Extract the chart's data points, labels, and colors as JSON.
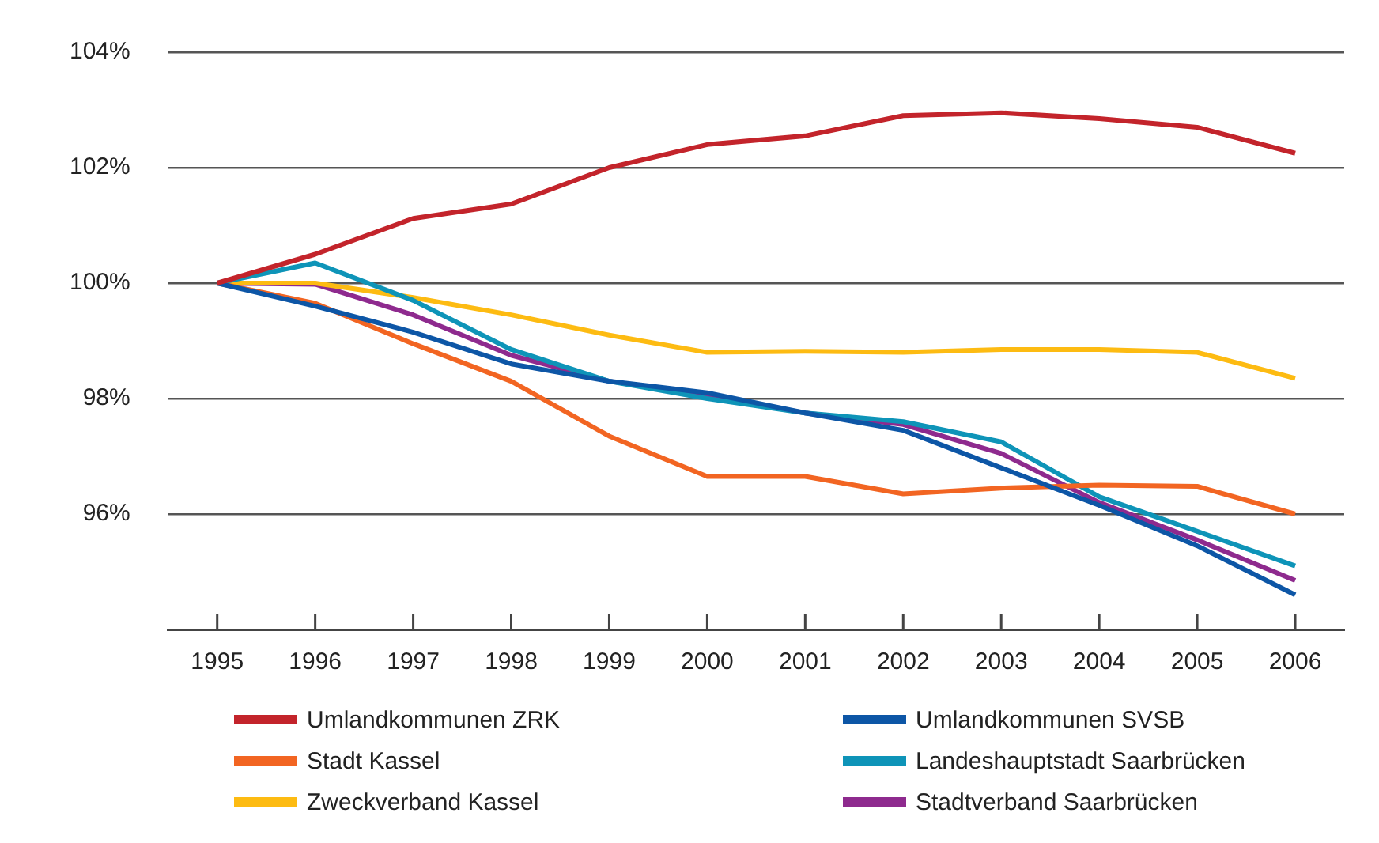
{
  "chart_data": {
    "type": "line",
    "categories": [
      "1995",
      "1996",
      "1997",
      "1998",
      "1999",
      "2000",
      "2001",
      "2002",
      "2003",
      "2004",
      "2005",
      "2006"
    ],
    "series": [
      {
        "name": "Umlandkommunen ZRK",
        "color": "#c3242b",
        "values": [
          100,
          100.5,
          101.12,
          101.37,
          102.0,
          102.4,
          102.55,
          102.9,
          102.95,
          102.85,
          102.7,
          102.25
        ]
      },
      {
        "name": "Umlandkommunen SVSB",
        "color": "#0d56a6",
        "values": [
          100,
          99.6,
          99.15,
          98.6,
          98.3,
          98.1,
          97.75,
          97.45,
          96.8,
          96.15,
          95.45,
          94.6
        ]
      },
      {
        "name": "Stadt Kassel",
        "color": "#f26522",
        "values": [
          100,
          99.65,
          98.95,
          98.3,
          97.35,
          96.65,
          96.65,
          96.35,
          96.45,
          96.5,
          96.48,
          96.0
        ]
      },
      {
        "name": "Landeshauptstadt Saarbrücken",
        "color": "#0e94b8",
        "values": [
          100,
          100.35,
          99.7,
          98.85,
          98.3,
          98.0,
          97.75,
          97.6,
          97.25,
          96.3,
          95.7,
          95.1
        ]
      },
      {
        "name": "Zweckverband Kassel",
        "color": "#fdbb12",
        "values": [
          100,
          100,
          99.75,
          99.45,
          99.1,
          98.8,
          98.82,
          98.8,
          98.85,
          98.85,
          98.8,
          98.35
        ]
      },
      {
        "name": "Stadtverband Saarbrücken",
        "color": "#8e2a8e",
        "values": [
          100,
          99.98,
          99.45,
          98.75,
          98.3,
          98.05,
          97.75,
          97.55,
          97.05,
          96.2,
          95.55,
          94.85
        ]
      }
    ],
    "ylim": [
      94,
      104
    ],
    "yticks": [
      {
        "value": 94,
        "label": null
      },
      {
        "value": 96,
        "label": "96%"
      },
      {
        "value": 98,
        "label": "98%"
      },
      {
        "value": 100,
        "label": "100%"
      },
      {
        "value": 102,
        "label": "102%"
      },
      {
        "value": 104,
        "label": "104%"
      }
    ],
    "grid": "y",
    "legend": "bottom",
    "marker": "none",
    "line_style": "solid"
  }
}
